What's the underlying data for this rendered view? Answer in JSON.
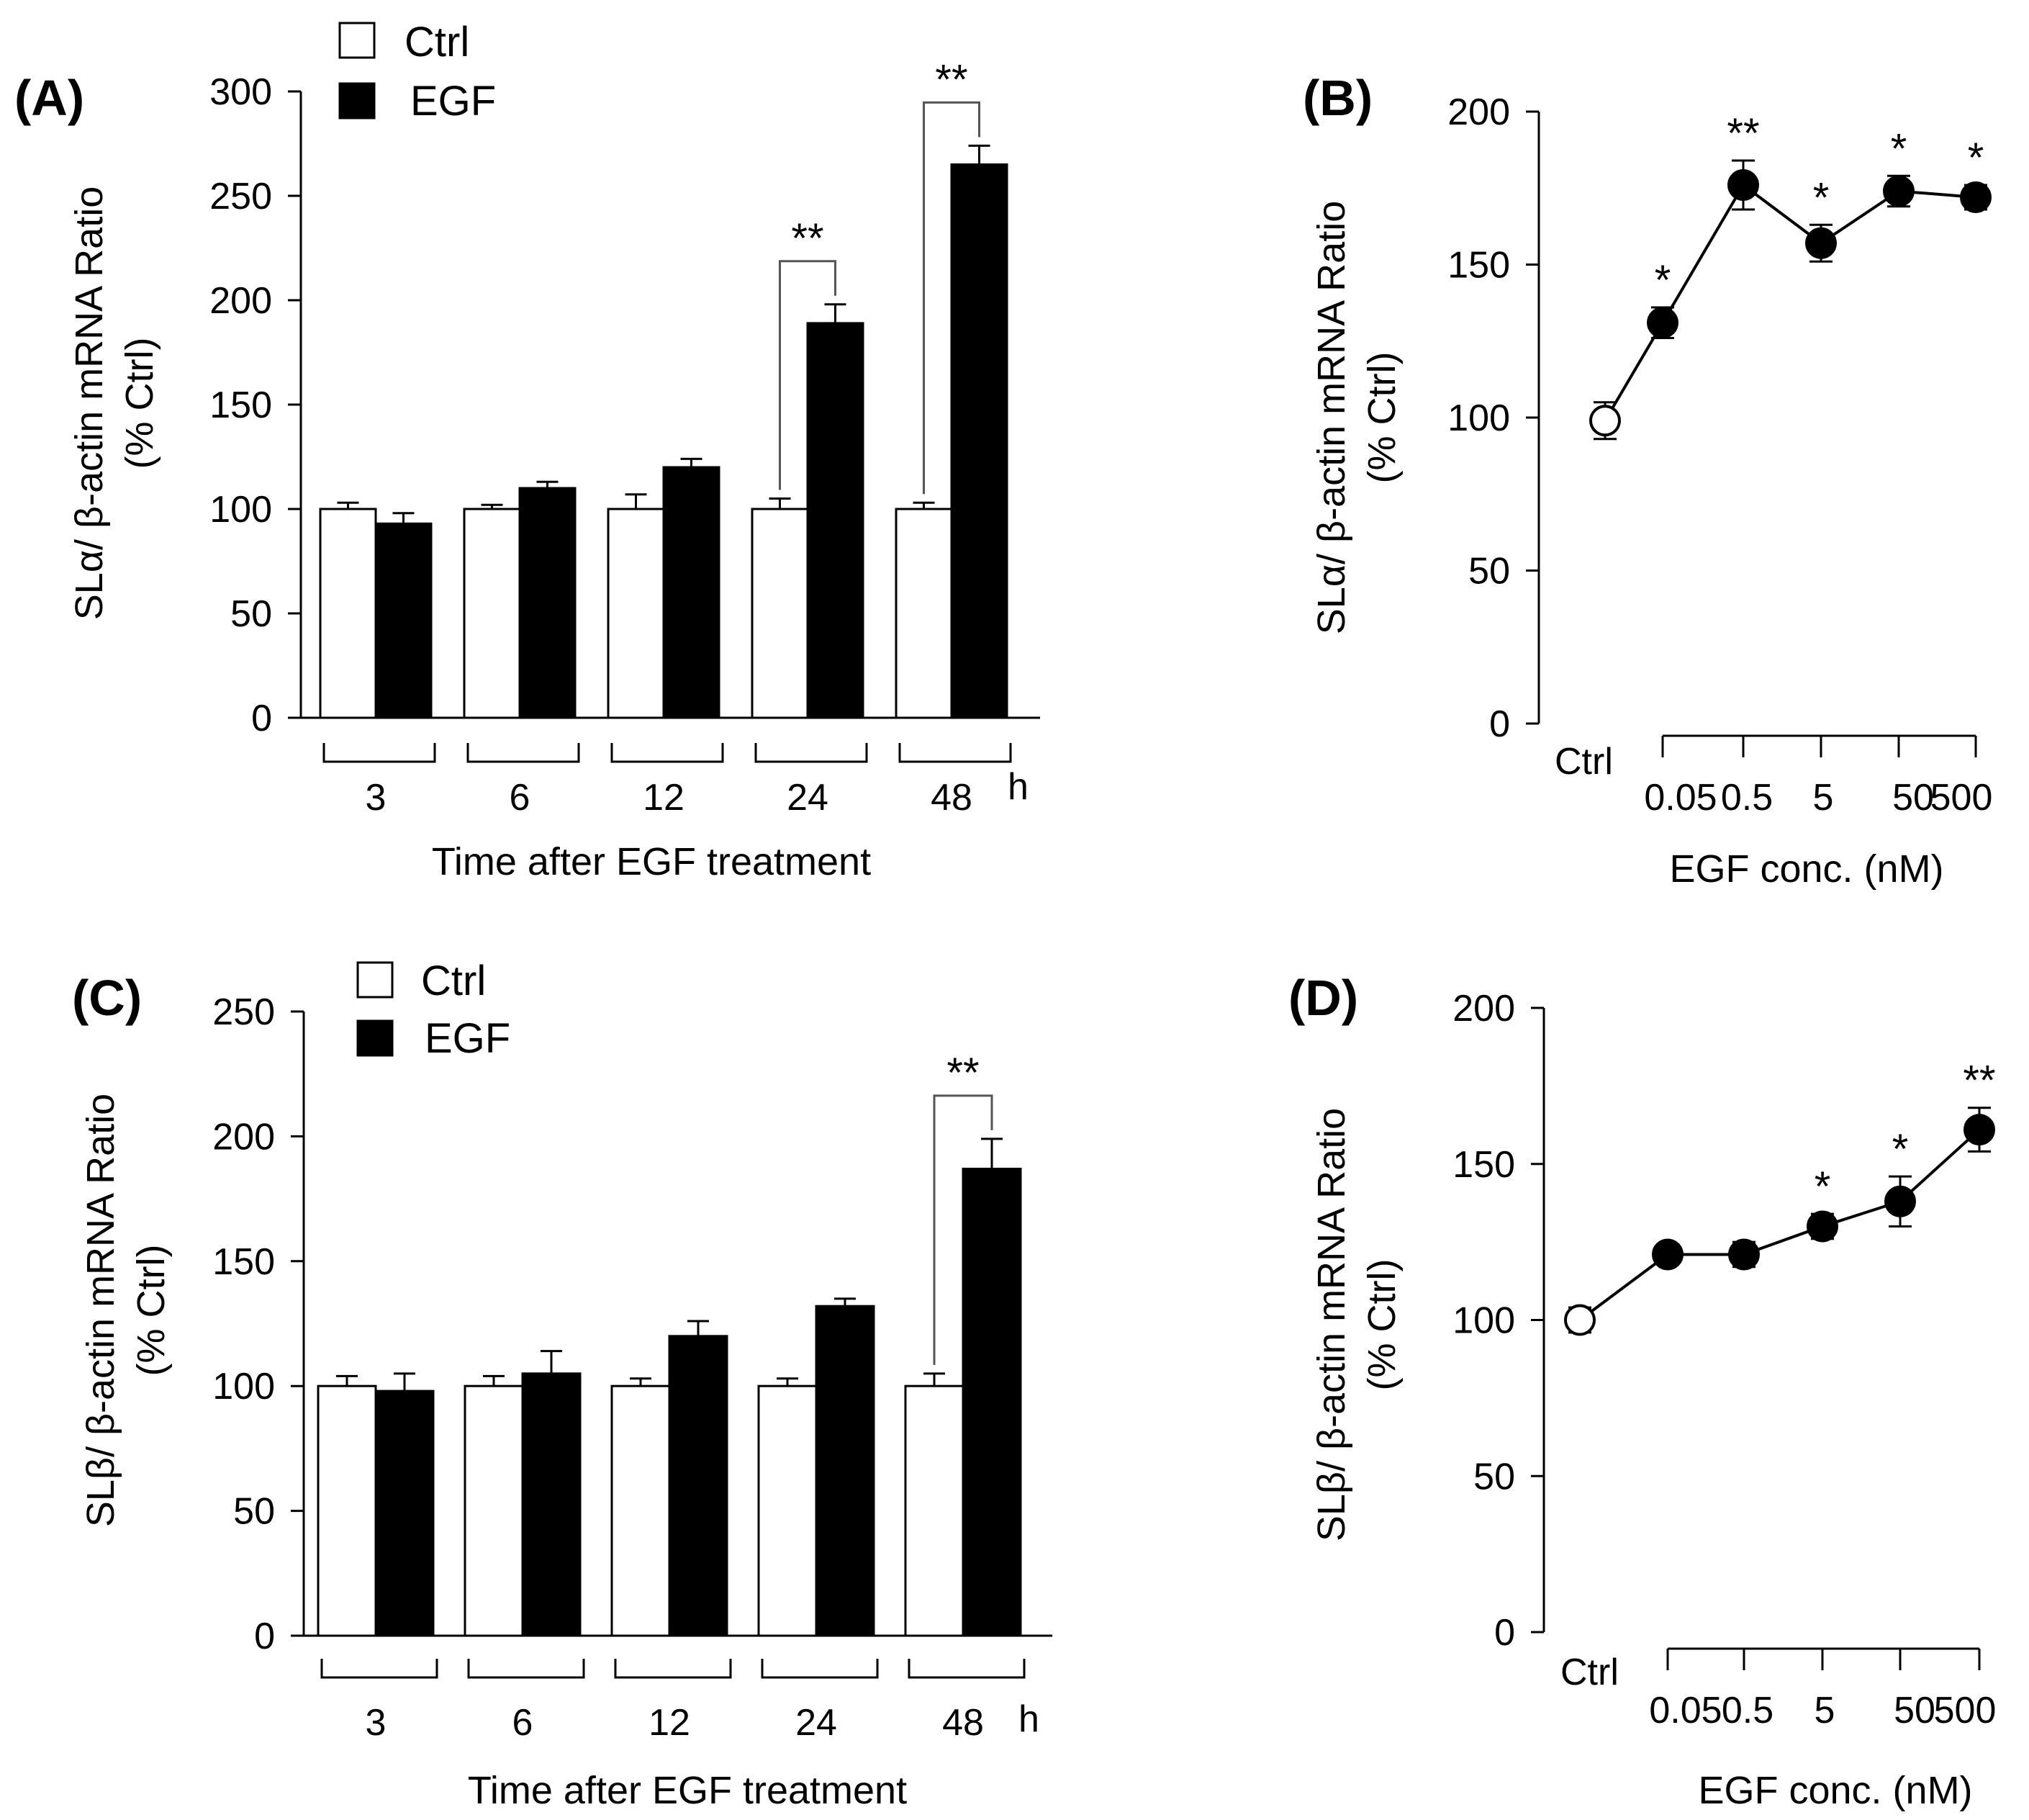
{
  "legend": {
    "ctrl_label": "Ctrl",
    "egf_label": "EGF"
  },
  "colors": {
    "ctrl": "#ffffff",
    "egf": "#000000",
    "axis": "#000000",
    "bracket": "#555555"
  },
  "chart_data": [
    {
      "panel": "(A)",
      "type": "bar",
      "ylabel": "SLα/ β-actin mRNA Ratio",
      "ylabel2": "(% Ctrl)",
      "xlabel": "Time after EGF treatment",
      "unit": "h",
      "categories": [
        "3",
        "6",
        "12",
        "24",
        "48"
      ],
      "yticks": [
        "0",
        "50",
        "100",
        "150",
        "200",
        "250",
        "300"
      ],
      "ylim": [
        0,
        300
      ],
      "series": [
        {
          "name": "Ctrl",
          "values": [
            100,
            100,
            100,
            100,
            100
          ],
          "errors": [
            3,
            2,
            7,
            5,
            3
          ]
        },
        {
          "name": "EGF",
          "values": [
            93,
            110,
            120,
            189,
            265
          ],
          "errors": [
            5,
            3,
            4,
            9,
            9
          ]
        }
      ],
      "significance": [
        {
          "category": "24",
          "label": "**"
        },
        {
          "category": "48",
          "label": "**"
        }
      ]
    },
    {
      "panel": "(B)",
      "type": "line",
      "ylabel": "SLα/ β-actin mRNA Ratio",
      "ylabel2": "(% Ctrl)",
      "xlabel": "EGF conc. (nM)",
      "ctrl_label": "Ctrl",
      "categories": [
        "0.05",
        "0.5",
        "5",
        "50",
        "500"
      ],
      "yticks": [
        "0",
        "50",
        "100",
        "150",
        "200"
      ],
      "ylim": [
        0,
        200
      ],
      "ctrl": {
        "value": 99,
        "error": 6
      },
      "values": [
        131,
        176,
        157,
        174,
        172
      ],
      "errors": [
        5,
        8,
        6,
        5,
        4
      ],
      "significance": [
        "*",
        "**",
        "*",
        "*",
        "*"
      ]
    },
    {
      "panel": "(C)",
      "type": "bar",
      "ylabel": "SLβ/ β-actin mRNA Ratio",
      "ylabel2": "(% Ctrl)",
      "xlabel": "Time after EGF treatment",
      "unit": "h",
      "categories": [
        "3",
        "6",
        "12",
        "24",
        "48"
      ],
      "yticks": [
        "0",
        "50",
        "100",
        "150",
        "200",
        "250"
      ],
      "ylim": [
        0,
        250
      ],
      "series": [
        {
          "name": "Ctrl",
          "values": [
            100,
            100,
            100,
            100,
            100
          ],
          "errors": [
            4,
            4,
            3,
            3,
            5
          ]
        },
        {
          "name": "EGF",
          "values": [
            98,
            105,
            120,
            132,
            187
          ],
          "errors": [
            7,
            9,
            6,
            3,
            12
          ]
        }
      ],
      "significance": [
        {
          "category": "48",
          "label": "**"
        }
      ]
    },
    {
      "panel": "(D)",
      "type": "line",
      "ylabel": "SLβ/ β-actin mRNA Ratio",
      "ylabel2": "(% Ctrl)",
      "xlabel": "EGF conc. (nM)",
      "ctrl_label": "Ctrl",
      "categories": [
        "0.05",
        "0.5",
        "5",
        "50",
        "500"
      ],
      "yticks": [
        "0",
        "50",
        "100",
        "150",
        "200"
      ],
      "ylim": [
        0,
        200
      ],
      "ctrl": {
        "value": 100,
        "error": 4
      },
      "values": [
        121,
        121,
        130,
        138,
        161
      ],
      "errors": [
        3,
        4,
        4,
        8,
        7
      ],
      "significance": [
        "",
        "",
        "*",
        "*",
        "**"
      ]
    }
  ]
}
